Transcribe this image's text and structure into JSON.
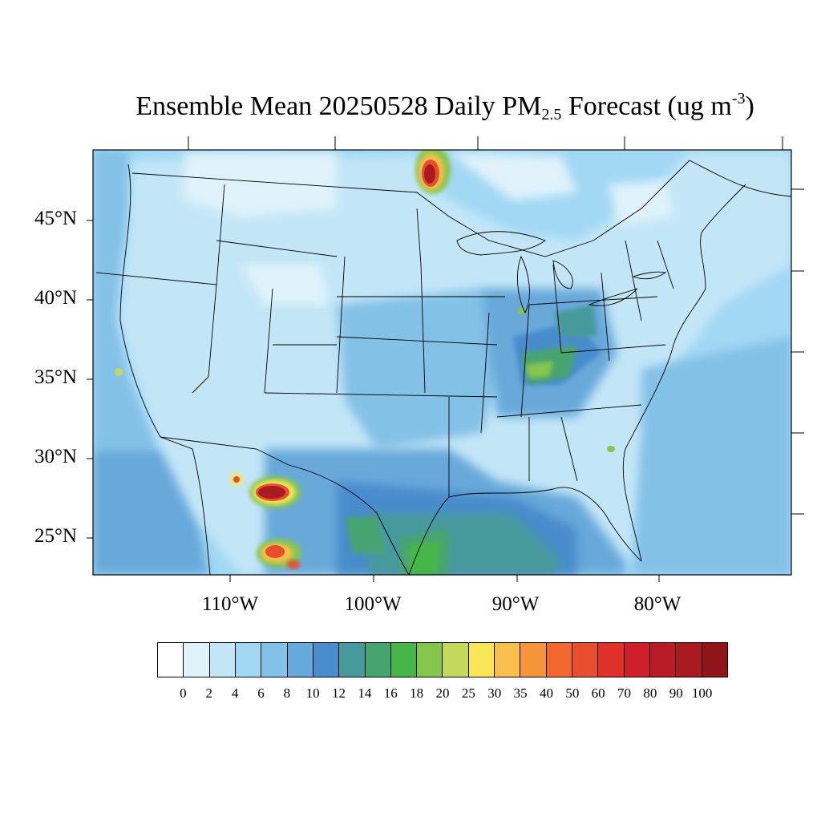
{
  "title": {
    "prefix": "Ensemble Mean 20250528 Daily PM",
    "sub": "2.5",
    "middle": " Forecast (ug m",
    "sup": "-3",
    "suffix": ")"
  },
  "map": {
    "region": "CONUS",
    "lat_labels": [
      "45°N",
      "40°N",
      "35°N",
      "30°N",
      "25°N"
    ],
    "lon_labels": [
      "110°W",
      "100°W",
      "90°W",
      "80°W"
    ],
    "hotspots": [
      "southern Manitoba / Ontario border",
      "Chihuahua, Mexico",
      "Durango, Mexico",
      "Ohio River valley",
      "Gulf of Mexico coast"
    ]
  },
  "colorbar": {
    "levels": [
      "0",
      "2",
      "4",
      "6",
      "8",
      "10",
      "12",
      "14",
      "16",
      "18",
      "20",
      "25",
      "30",
      "35",
      "40",
      "50",
      "60",
      "70",
      "80",
      "90",
      "100"
    ],
    "colors": [
      "#ffffff",
      "#e0f3fb",
      "#c3e6f7",
      "#a2d8f4",
      "#84c1e7",
      "#67a9da",
      "#4a8ccc",
      "#479a9c",
      "#46a46f",
      "#47b649",
      "#85c64d",
      "#c4d85b",
      "#f9e656",
      "#f8bf4a",
      "#f59439",
      "#f2682f",
      "#e84d2d",
      "#df3129",
      "#cf1f2b",
      "#ba1c26",
      "#a91b21",
      "#8f1518"
    ]
  }
}
